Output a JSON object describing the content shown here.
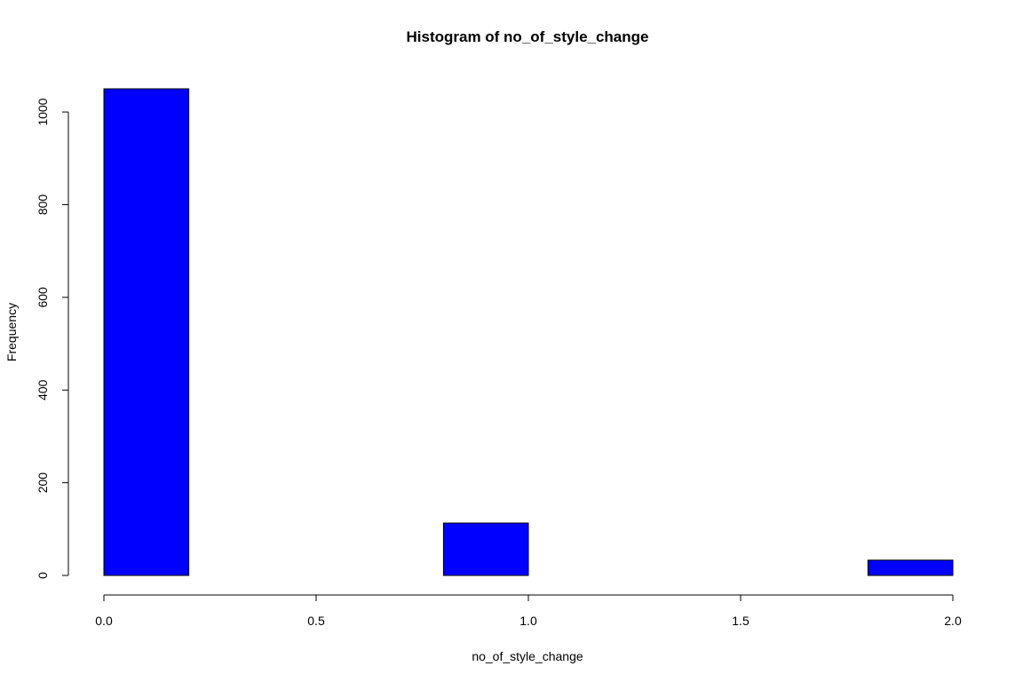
{
  "chart_data": {
    "type": "bar",
    "title": "Histogram of no_of_style_change",
    "xlabel": "no_of_style_change",
    "ylabel": "Frequency",
    "bin_edges": [
      0.0,
      0.2,
      0.4,
      0.6,
      0.8,
      1.0,
      1.2,
      1.4,
      1.6,
      1.8,
      2.0
    ],
    "values": [
      1050,
      0,
      0,
      0,
      113,
      0,
      0,
      0,
      0,
      33
    ],
    "xlim": [
      0.0,
      2.0
    ],
    "ylim": [
      0,
      1050
    ],
    "x_ticks": [
      0.0,
      0.5,
      1.0,
      1.5,
      2.0
    ],
    "x_tick_labels": [
      "0.0",
      "0.5",
      "1.0",
      "1.5",
      "2.0"
    ],
    "y_ticks": [
      0,
      200,
      400,
      600,
      800,
      1000
    ],
    "y_tick_labels": [
      "0",
      "200",
      "400",
      "600",
      "800",
      "1000"
    ],
    "bar_color": "#0000FF",
    "grid": false,
    "legend": "none"
  }
}
